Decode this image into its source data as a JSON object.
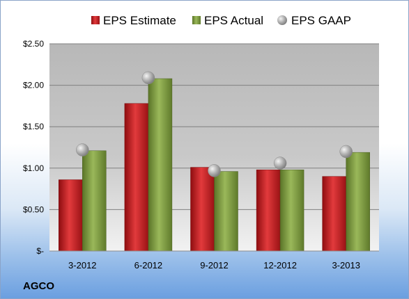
{
  "ticker": "AGCO",
  "colors": {
    "estimate": "#c0191c",
    "actual": "#7c9a3a",
    "gaap": "#a9a9a9"
  },
  "chart_data": {
    "type": "bar",
    "title": "",
    "xlabel": "",
    "ylabel": "",
    "categories": [
      "3-2012",
      "6-2012",
      "9-2012",
      "12-2012",
      "3-2013"
    ],
    "series": [
      {
        "name": "EPS Estimate",
        "kind": "bar",
        "values": [
          0.86,
          1.78,
          1.01,
          0.98,
          0.9
        ]
      },
      {
        "name": "EPS Actual",
        "kind": "bar",
        "values": [
          1.21,
          2.08,
          0.96,
          0.98,
          1.19
        ]
      },
      {
        "name": "EPS GAAP",
        "kind": "marker",
        "values": [
          1.22,
          2.09,
          0.97,
          1.06,
          1.2
        ]
      }
    ],
    "ylim": [
      0,
      2.5
    ],
    "yticks": [
      0,
      0.5,
      1.0,
      1.5,
      2.0,
      2.5
    ],
    "ytick_labels": [
      "$-",
      "$0.50",
      "$1.00",
      "$1.50",
      "$2.00",
      "$2.50"
    ],
    "grid": true,
    "legend_position": "top"
  }
}
